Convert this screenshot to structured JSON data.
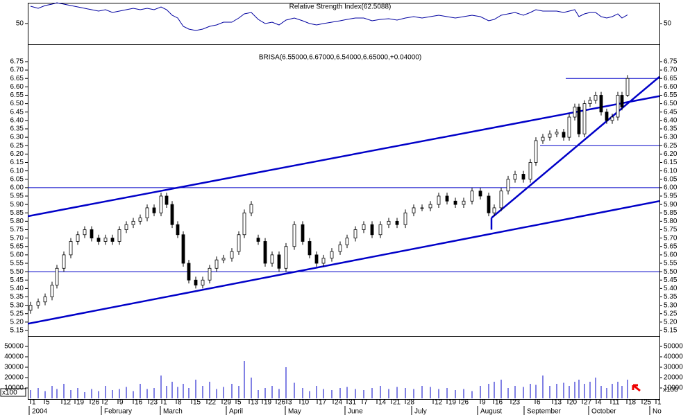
{
  "chart_data": {
    "type": "candlestick",
    "title": "BRISA(6.55000,6.67000,6.54000,6.65000,+0.04000)",
    "xlim": [
      0,
      910
    ],
    "xticks": [
      {
        "value": 4,
        "label": "1"
      },
      {
        "value": 24,
        "label": "5"
      },
      {
        "value": 49,
        "label": "12"
      },
      {
        "value": 68,
        "label": "19"
      },
      {
        "value": 90,
        "label": "26"
      },
      {
        "value": 108,
        "label": "2"
      },
      {
        "value": 130,
        "label": "9"
      },
      {
        "value": 152,
        "label": "16"
      },
      {
        "value": 174,
        "label": "23"
      },
      {
        "value": 193,
        "label": "1"
      },
      {
        "value": 214,
        "label": "8"
      },
      {
        "value": 236,
        "label": "15"
      },
      {
        "value": 258,
        "label": "22"
      },
      {
        "value": 280,
        "label": "29"
      },
      {
        "value": 300,
        "label": "5"
      },
      {
        "value": 319,
        "label": "13"
      },
      {
        "value": 338,
        "label": "19"
      },
      {
        "value": 358,
        "label": "26"
      },
      {
        "value": 373,
        "label": "3"
      },
      {
        "value": 392,
        "label": "10"
      },
      {
        "value": 417,
        "label": "17"
      },
      {
        "value": 440,
        "label": "24"
      },
      {
        "value": 460,
        "label": "31"
      },
      {
        "value": 482,
        "label": "7"
      },
      {
        "value": 503,
        "label": "14"
      },
      {
        "value": 524,
        "label": "21"
      },
      {
        "value": 544,
        "label": "28"
      },
      {
        "value": 584,
        "label": "12"
      },
      {
        "value": 604,
        "label": "19"
      },
      {
        "value": 622,
        "label": "26"
      },
      {
        "value": 652,
        "label": "9"
      },
      {
        "value": 671,
        "label": "16"
      },
      {
        "value": 696,
        "label": "23"
      },
      {
        "value": 731,
        "label": "6"
      },
      {
        "value": 756,
        "label": "13"
      },
      {
        "value": 778,
        "label": "20"
      },
      {
        "value": 799,
        "label": "27"
      },
      {
        "value": 819,
        "label": "4"
      },
      {
        "value": 840,
        "label": "11"
      },
      {
        "value": 863,
        "label": "18"
      },
      {
        "value": 885,
        "label": "25"
      },
      {
        "value": 905,
        "label": "1"
      }
    ],
    "month_labels": [
      {
        "value": 4,
        "label": "2004"
      },
      {
        "value": 108,
        "label": "February"
      },
      {
        "value": 193,
        "label": "March"
      },
      {
        "value": 288,
        "label": "April"
      },
      {
        "value": 373,
        "label": "May"
      },
      {
        "value": 459,
        "label": "June"
      },
      {
        "value": 555,
        "label": "July"
      },
      {
        "value": 650,
        "label": "August"
      },
      {
        "value": 717,
        "label": "September"
      },
      {
        "value": 810,
        "label": "October"
      },
      {
        "value": 898,
        "label": "No"
      }
    ],
    "ylim": [
      5.117,
      6.853
    ],
    "yticks": [
      5.15,
      {
        "value": 5.2,
        "label": "5.20"
      },
      5.25,
      {
        "value": 5.3,
        "label": "5.30"
      },
      5.35,
      {
        "value": 5.4,
        "label": "5.40"
      },
      5.45,
      {
        "value": 5.5,
        "label": "5.50"
      },
      5.55,
      {
        "value": 5.6,
        "label": "5.60"
      },
      5.65,
      {
        "value": 5.7,
        "label": "5.70"
      },
      5.75,
      {
        "value": 5.8,
        "label": "5.80"
      },
      5.85,
      {
        "value": 5.9,
        "label": "5.90"
      },
      5.95,
      {
        "value": 6,
        "label": "6.00"
      },
      6.05,
      {
        "value": 6.1,
        "label": "6.10"
      },
      6.15,
      {
        "value": 6.2,
        "label": "6.20"
      },
      6.25,
      {
        "value": 6.3,
        "label": "6.30"
      },
      6.35,
      {
        "value": 6.4,
        "label": "6.40"
      },
      6.45,
      {
        "value": 6.5,
        "label": "6.50"
      },
      6.55,
      {
        "value": 6.6,
        "label": "6.60"
      },
      6.65,
      {
        "value": 6.7,
        "label": "6.70"
      },
      6.75
    ],
    "x": [
      4,
      15,
      25,
      35,
      42,
      52,
      62,
      72,
      82,
      92,
      102,
      112,
      122,
      132,
      142,
      152,
      162,
      172,
      182,
      192,
      200,
      208,
      216,
      224,
      232,
      242,
      252,
      262,
      272,
      282,
      294,
      304,
      312,
      322,
      332,
      342,
      352,
      362,
      372,
      384,
      396,
      406,
      416,
      426,
      438,
      450,
      460,
      472,
      484,
      496,
      508,
      520,
      532,
      544,
      556,
      568,
      580,
      592,
      604,
      616,
      628,
      640,
      652,
      664,
      672,
      682,
      692,
      702,
      714,
      724,
      732,
      742,
      752,
      762,
      772,
      780,
      788,
      794,
      802,
      810,
      818,
      826,
      834,
      842,
      850,
      856,
      864
    ],
    "open": [
      5.27,
      5.3,
      5.32,
      5.35,
      5.42,
      5.52,
      5.6,
      5.68,
      5.72,
      5.75,
      5.7,
      5.68,
      5.7,
      5.68,
      5.75,
      5.78,
      5.8,
      5.82,
      5.88,
      5.85,
      5.95,
      5.9,
      5.78,
      5.72,
      5.55,
      5.45,
      5.42,
      5.45,
      5.52,
      5.57,
      5.58,
      5.62,
      5.72,
      5.85,
      5.7,
      5.68,
      5.55,
      5.6,
      5.52,
      5.65,
      5.78,
      5.68,
      5.6,
      5.55,
      5.58,
      5.62,
      5.66,
      5.7,
      5.75,
      5.78,
      5.72,
      5.78,
      5.8,
      5.78,
      5.85,
      5.88,
      5.88,
      5.9,
      5.95,
      5.92,
      5.9,
      5.92,
      5.98,
      5.95,
      5.85,
      5.88,
      5.98,
      6.05,
      6.08,
      6.05,
      6.15,
      6.28,
      6.3,
      6.32,
      6.33,
      6.3,
      6.42,
      6.48,
      6.32,
      6.5,
      6.52,
      6.55,
      6.45,
      6.4,
      6.42,
      6.55,
      6.55
    ],
    "high": [
      5.32,
      5.34,
      5.37,
      5.44,
      5.54,
      5.62,
      5.7,
      5.74,
      5.77,
      5.77,
      5.72,
      5.72,
      5.72,
      5.77,
      5.8,
      5.82,
      5.84,
      5.9,
      5.9,
      5.97,
      5.97,
      5.92,
      5.8,
      5.74,
      5.57,
      5.47,
      5.47,
      5.54,
      5.59,
      5.6,
      5.64,
      5.74,
      5.87,
      5.92,
      5.72,
      5.7,
      5.62,
      5.62,
      5.67,
      5.8,
      5.8,
      5.7,
      5.62,
      5.6,
      5.64,
      5.68,
      5.72,
      5.77,
      5.8,
      5.8,
      5.8,
      5.82,
      5.82,
      5.87,
      5.9,
      5.9,
      5.92,
      5.97,
      5.97,
      5.94,
      5.94,
      6.0,
      6.0,
      5.97,
      5.9,
      6.0,
      6.07,
      6.1,
      6.1,
      6.17,
      6.3,
      6.32,
      6.34,
      6.35,
      6.35,
      6.44,
      6.5,
      6.5,
      6.52,
      6.54,
      6.57,
      6.57,
      6.47,
      6.44,
      6.57,
      6.57,
      6.67
    ],
    "low": [
      5.25,
      5.28,
      5.3,
      5.33,
      5.4,
      5.5,
      5.58,
      5.66,
      5.7,
      5.68,
      5.66,
      5.66,
      5.66,
      5.66,
      5.73,
      5.76,
      5.78,
      5.8,
      5.83,
      5.83,
      5.88,
      5.76,
      5.7,
      5.53,
      5.43,
      5.4,
      5.4,
      5.43,
      5.5,
      5.55,
      5.56,
      5.6,
      5.7,
      5.83,
      5.66,
      5.53,
      5.53,
      5.5,
      5.5,
      5.63,
      5.66,
      5.58,
      5.53,
      5.53,
      5.56,
      5.6,
      5.64,
      5.68,
      5.73,
      5.7,
      5.7,
      5.76,
      5.76,
      5.76,
      5.83,
      5.86,
      5.86,
      5.88,
      5.9,
      5.88,
      5.88,
      5.9,
      5.93,
      5.83,
      5.83,
      5.86,
      5.96,
      6.03,
      6.03,
      6.03,
      6.13,
      6.26,
      6.28,
      6.3,
      6.28,
      6.28,
      6.4,
      6.3,
      6.3,
      6.48,
      6.5,
      6.43,
      6.38,
      6.38,
      6.4,
      6.46,
      6.54
    ],
    "close": [
      5.3,
      5.32,
      5.35,
      5.42,
      5.52,
      5.6,
      5.68,
      5.72,
      5.75,
      5.7,
      5.68,
      5.7,
      5.68,
      5.75,
      5.78,
      5.8,
      5.82,
      5.88,
      5.85,
      5.95,
      5.9,
      5.78,
      5.72,
      5.55,
      5.45,
      5.42,
      5.45,
      5.52,
      5.57,
      5.58,
      5.62,
      5.72,
      5.85,
      5.9,
      5.68,
      5.55,
      5.6,
      5.52,
      5.65,
      5.78,
      5.68,
      5.6,
      5.55,
      5.58,
      5.62,
      5.66,
      5.7,
      5.75,
      5.78,
      5.72,
      5.78,
      5.8,
      5.78,
      5.85,
      5.88,
      5.88,
      5.9,
      5.95,
      5.92,
      5.9,
      5.92,
      5.98,
      5.95,
      5.85,
      5.88,
      5.98,
      6.05,
      6.08,
      6.05,
      6.15,
      6.28,
      6.3,
      6.32,
      6.33,
      6.3,
      6.42,
      6.48,
      6.32,
      6.5,
      6.52,
      6.55,
      6.45,
      6.4,
      6.42,
      6.55,
      6.48,
      6.65
    ],
    "hlines": [
      6.0,
      5.5
    ],
    "trendlines": [
      {
        "x": [
          0,
          910
        ],
        "y": [
          5.83,
          6.545
        ]
      },
      {
        "x": [
          0,
          910
        ],
        "y": [
          5.19,
          5.92
        ]
      },
      {
        "x": [
          668,
          910
        ],
        "y": [
          5.82,
          6.66
        ]
      },
      {
        "x": [
          668,
          668
        ],
        "y": [
          5.75,
          5.82
        ]
      },
      {
        "x": [
          775,
          910
        ],
        "y": [
          6.65,
          6.65
        ]
      },
      {
        "x": [
          738,
          910
        ],
        "y": [
          6.25,
          6.25
        ]
      }
    ],
    "rsi": {
      "title": "Relative Strength Index(62.5088)",
      "ylim": [
        20,
        80
      ],
      "yticks": [
        50
      ],
      "color": "#0000a0",
      "values": [
        75,
        72,
        76,
        78,
        80,
        78,
        76,
        74,
        72,
        70,
        68,
        70,
        66,
        68,
        70,
        72,
        70,
        72,
        70,
        74,
        70,
        62,
        58,
        46,
        42,
        40,
        42,
        46,
        48,
        52,
        52,
        58,
        64,
        66,
        56,
        50,
        52,
        48,
        55,
        58,
        54,
        50,
        48,
        50,
        52,
        54,
        56,
        58,
        58,
        54,
        56,
        57,
        55,
        58,
        60,
        58,
        60,
        62,
        60,
        58,
        60,
        62,
        60,
        54,
        56,
        62,
        64,
        66,
        62,
        66,
        70,
        68,
        68,
        68,
        66,
        68,
        70,
        60,
        64,
        66,
        66,
        60,
        58,
        60,
        64,
        58,
        62.5088
      ]
    },
    "volume": {
      "unit": "x100",
      "ylim": [
        0,
        60000
      ],
      "yticks": [
        10000,
        20000,
        30000,
        40000,
        50000
      ],
      "color": "#0000c8",
      "values": [
        8000,
        10000,
        7000,
        12000,
        9000,
        14000,
        8000,
        10000,
        6000,
        9000,
        7000,
        12000,
        8000,
        9000,
        11000,
        7000,
        14000,
        9000,
        10000,
        22000,
        12000,
        16000,
        11000,
        14000,
        10000,
        18000,
        12000,
        16000,
        9000,
        11000,
        14000,
        12000,
        36000,
        20000,
        8000,
        10000,
        12000,
        9000,
        30000,
        15000,
        10000,
        7000,
        12000,
        9000,
        8000,
        10000,
        11000,
        9000,
        8000,
        10000,
        12000,
        9000,
        11000,
        10000,
        9000,
        12000,
        11000,
        9000,
        10000,
        8000,
        9000,
        7000,
        12000,
        14000,
        16000,
        18000,
        10000,
        12000,
        11000,
        14000,
        13000,
        22000,
        12000,
        14000,
        15000,
        12000,
        16000,
        18000,
        14000,
        16000,
        20000,
        12000,
        10000,
        14000,
        16000,
        12000,
        18000
      ]
    }
  }
}
